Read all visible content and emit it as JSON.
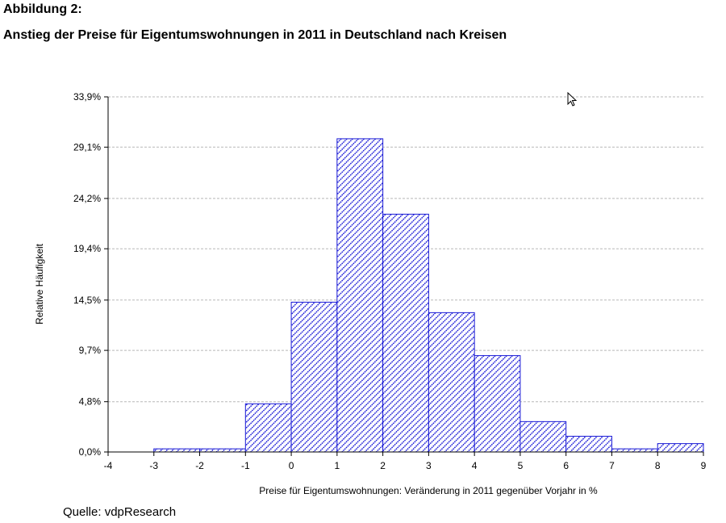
{
  "header": {
    "figure_label": "Abbildung 2:",
    "title": "Anstieg der Preise für Eigentumswohnungen in 2011 in Deutschland nach Kreisen"
  },
  "source": "Quelle: vdpResearch",
  "chart_data": {
    "type": "bar",
    "title": "",
    "xlabel": "Preise für Eigentumswohnungen: Veränderung in 2011 gegenüber Vorjahr in %",
    "ylabel": "Relative Häufigkeit",
    "xlim": [
      -4,
      9
    ],
    "ylim": [
      0,
      33.9
    ],
    "xticks": [
      -4,
      -3,
      -2,
      -1,
      0,
      1,
      2,
      3,
      4,
      5,
      6,
      7,
      8,
      9
    ],
    "yticks": [
      0.0,
      4.8,
      9.7,
      14.5,
      19.4,
      24.2,
      29.1,
      33.9
    ],
    "ytick_labels": [
      "0,0%",
      "4,8%",
      "9,7%",
      "14,5%",
      "19,4%",
      "24,2%",
      "29,1%",
      "33,9%"
    ],
    "grid": true,
    "bins": [
      {
        "from": -3,
        "to": -2,
        "value": 0.3
      },
      {
        "from": -2,
        "to": -1,
        "value": 0.3
      },
      {
        "from": -1,
        "to": 0,
        "value": 4.6
      },
      {
        "from": 0,
        "to": 1,
        "value": 14.3
      },
      {
        "from": 1,
        "to": 2,
        "value": 29.9
      },
      {
        "from": 2,
        "to": 3,
        "value": 22.7
      },
      {
        "from": 3,
        "to": 4,
        "value": 13.3
      },
      {
        "from": 4,
        "to": 5,
        "value": 9.2
      },
      {
        "from": 5,
        "to": 6,
        "value": 2.9
      },
      {
        "from": 6,
        "to": 7,
        "value": 1.5
      },
      {
        "from": 7,
        "to": 8,
        "value": 0.3
      },
      {
        "from": 8,
        "to": 9,
        "value": 0.8
      }
    ],
    "bar_color": "#1a1ad6",
    "grid_color": "#b8b8b8"
  }
}
